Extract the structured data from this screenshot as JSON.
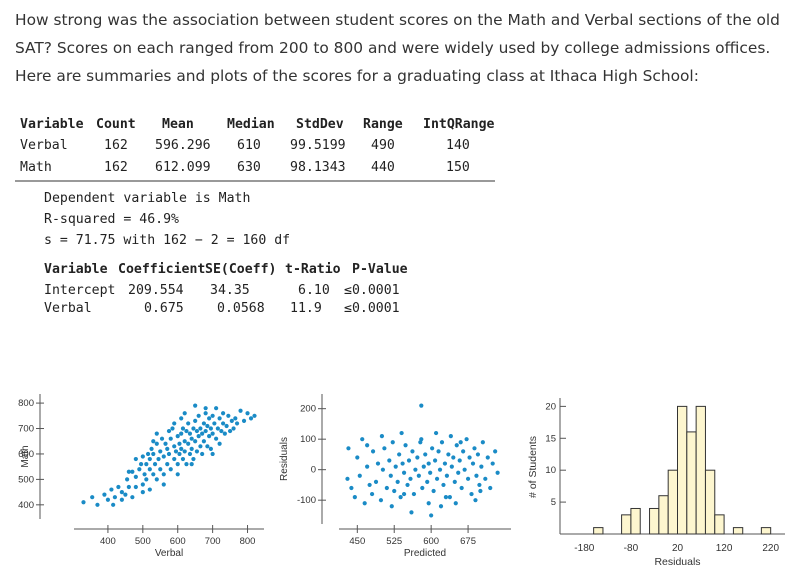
{
  "intro": {
    "line1": "How strong was the association between student scores on the Math and Verbal sections of the old",
    "line2": "SAT? Scores on each ranged from 200 to 800 and were widely used by college admissions offices.",
    "line3": "Here are summaries and plots of the scores for a graduating class at Ithaca High School:"
  },
  "summary": {
    "headers": [
      "Variable",
      "Count",
      "Mean",
      "Median",
      "StdDev",
      "Range",
      "IntQRange"
    ],
    "rows": [
      [
        "Verbal",
        "162",
        "596.296",
        "610",
        "99.5199",
        "490",
        "140"
      ],
      [
        "Math",
        "162",
        "612.099",
        "630",
        "98.1343",
        "440",
        "150"
      ]
    ]
  },
  "regression": {
    "dependent": "Dependent variable is Math",
    "rsq": "R-squared = 46.9%",
    "s": "s = 71.75 with 162 − 2 = 160 df"
  },
  "coef": {
    "headers": [
      "Variable",
      "Coefficient",
      "SE(Coeff)",
      "t-Ratio",
      "P-Value"
    ],
    "rows": [
      [
        "Intercept",
        "209.554",
        "34.35",
        "6.10",
        "≤0.0001"
      ],
      [
        "Verbal",
        "0.675",
        "0.0568",
        "11.9",
        "≤0.0001"
      ]
    ]
  },
  "chart_data": [
    {
      "type": "scatter",
      "xlabel": "Verbal",
      "ylabel": "Math",
      "x_ticks": [
        "400",
        "500",
        "600",
        "700",
        "800"
      ],
      "y_ticks": [
        "400",
        "500",
        "600",
        "700",
        "800"
      ],
      "xlim": [
        320,
        830
      ],
      "ylim": [
        360,
        820
      ],
      "color": "#1a8bc6",
      "points": [
        [
          330,
          410
        ],
        [
          355,
          430
        ],
        [
          370,
          400
        ],
        [
          390,
          440
        ],
        [
          400,
          420
        ],
        [
          410,
          460
        ],
        [
          415,
          400
        ],
        [
          420,
          430
        ],
        [
          430,
          470
        ],
        [
          440,
          420
        ],
        [
          440,
          450
        ],
        [
          450,
          440
        ],
        [
          455,
          500
        ],
        [
          460,
          470
        ],
        [
          470,
          530
        ],
        [
          470,
          430
        ],
        [
          480,
          510
        ],
        [
          480,
          470
        ],
        [
          490,
          540
        ],
        [
          495,
          560
        ],
        [
          500,
          480
        ],
        [
          500,
          590
        ],
        [
          505,
          520
        ],
        [
          510,
          560
        ],
        [
          510,
          500
        ],
        [
          515,
          600
        ],
        [
          520,
          540
        ],
        [
          520,
          580
        ],
        [
          525,
          620
        ],
        [
          530,
          520
        ],
        [
          530,
          600
        ],
        [
          535,
          560
        ],
        [
          540,
          640
        ],
        [
          540,
          500
        ],
        [
          545,
          580
        ],
        [
          550,
          610
        ],
        [
          550,
          540
        ],
        [
          555,
          660
        ],
        [
          560,
          590
        ],
        [
          560,
          520
        ],
        [
          565,
          640
        ],
        [
          570,
          560
        ],
        [
          570,
          620
        ],
        [
          575,
          600
        ],
        [
          580,
          660
        ],
        [
          580,
          540
        ],
        [
          585,
          700
        ],
        [
          590,
          580
        ],
        [
          590,
          630
        ],
        [
          595,
          610
        ],
        [
          600,
          670
        ],
        [
          600,
          560
        ],
        [
          605,
          640
        ],
        [
          605,
          600
        ],
        [
          610,
          680
        ],
        [
          610,
          620
        ],
        [
          615,
          700
        ],
        [
          615,
          580
        ],
        [
          620,
          650
        ],
        [
          620,
          610
        ],
        [
          625,
          690
        ],
        [
          625,
          560
        ],
        [
          630,
          720
        ],
        [
          630,
          640
        ],
        [
          635,
          600
        ],
        [
          635,
          680
        ],
        [
          640,
          660
        ],
        [
          640,
          620
        ],
        [
          645,
          700
        ],
        [
          645,
          580
        ],
        [
          650,
          650
        ],
        [
          650,
          730
        ],
        [
          655,
          610
        ],
        [
          655,
          690
        ],
        [
          660,
          670
        ],
        [
          660,
          750
        ],
        [
          665,
          630
        ],
        [
          665,
          700
        ],
        [
          670,
          680
        ],
        [
          670,
          600
        ],
        [
          675,
          720
        ],
        [
          675,
          650
        ],
        [
          680,
          760
        ],
        [
          680,
          690
        ],
        [
          685,
          630
        ],
        [
          685,
          710
        ],
        [
          690,
          670
        ],
        [
          690,
          740
        ],
        [
          695,
          700
        ],
        [
          695,
          620
        ],
        [
          700,
          750
        ],
        [
          700,
          680
        ],
        [
          705,
          720
        ],
        [
          710,
          660
        ],
        [
          710,
          780
        ],
        [
          715,
          700
        ],
        [
          720,
          740
        ],
        [
          720,
          640
        ],
        [
          725,
          690
        ],
        [
          730,
          760
        ],
        [
          730,
          720
        ],
        [
          735,
          680
        ],
        [
          740,
          710
        ],
        [
          745,
          750
        ],
        [
          750,
          690
        ],
        [
          755,
          730
        ],
        [
          760,
          700
        ],
        [
          765,
          740
        ],
        [
          770,
          720
        ],
        [
          780,
          770
        ],
        [
          790,
          730
        ],
        [
          800,
          760
        ],
        [
          810,
          740
        ],
        [
          820,
          750
        ],
        [
          500,
          450
        ],
        [
          520,
          460
        ],
        [
          560,
          480
        ],
        [
          600,
          520
        ],
        [
          640,
          560
        ],
        [
          700,
          600
        ],
        [
          480,
          580
        ],
        [
          540,
          680
        ],
        [
          590,
          720
        ],
        [
          620,
          760
        ],
        [
          680,
          780
        ],
        [
          460,
          530
        ],
        [
          530,
          650
        ],
        [
          575,
          690
        ],
        [
          610,
          740
        ],
        [
          650,
          790
        ]
      ]
    },
    {
      "type": "scatter",
      "xlabel": "Predicted",
      "ylabel": "Residuals",
      "x_ticks": [
        "450",
        "525",
        "600",
        "675"
      ],
      "y_ticks": [
        "-100",
        "0",
        "100",
        "200"
      ],
      "xlim": [
        425,
        750
      ],
      "ylim": [
        -165,
        235
      ],
      "color": "#1a8bc6",
      "points": [
        [
          430,
          -30
        ],
        [
          432,
          70
        ],
        [
          438,
          -60
        ],
        [
          445,
          -90
        ],
        [
          450,
          40
        ],
        [
          455,
          -20
        ],
        [
          460,
          100
        ],
        [
          465,
          -110
        ],
        [
          470,
          10
        ],
        [
          475,
          -50
        ],
        [
          480,
          -80
        ],
        [
          482,
          60
        ],
        [
          488,
          -40
        ],
        [
          492,
          20
        ],
        [
          498,
          -100
        ],
        [
          502,
          0
        ],
        [
          505,
          70
        ],
        [
          510,
          -60
        ],
        [
          515,
          30
        ],
        [
          518,
          -20
        ],
        [
          522,
          90
        ],
        [
          525,
          -70
        ],
        [
          528,
          10
        ],
        [
          532,
          -40
        ],
        [
          535,
          50
        ],
        [
          538,
          -90
        ],
        [
          542,
          20
        ],
        [
          545,
          -10
        ],
        [
          548,
          80
        ],
        [
          552,
          -50
        ],
        [
          555,
          30
        ],
        [
          558,
          -30
        ],
        [
          562,
          60
        ],
        [
          565,
          -80
        ],
        [
          568,
          0
        ],
        [
          572,
          40
        ],
        [
          575,
          -20
        ],
        [
          578,
          90
        ],
        [
          582,
          -60
        ],
        [
          585,
          10
        ],
        [
          588,
          50
        ],
        [
          592,
          -40
        ],
        [
          595,
          20
        ],
        [
          598,
          -10
        ],
        [
          602,
          70
        ],
        [
          605,
          -70
        ],
        [
          608,
          30
        ],
        [
          612,
          -30
        ],
        [
          615,
          60
        ],
        [
          618,
          0
        ],
        [
          622,
          90
        ],
        [
          625,
          -50
        ],
        [
          628,
          20
        ],
        [
          632,
          -20
        ],
        [
          635,
          50
        ],
        [
          638,
          -90
        ],
        [
          642,
          10
        ],
        [
          645,
          40
        ],
        [
          648,
          -40
        ],
        [
          652,
          80
        ],
        [
          655,
          -10
        ],
        [
          658,
          30
        ],
        [
          662,
          -60
        ],
        [
          665,
          60
        ],
        [
          668,
          0
        ],
        [
          672,
          100
        ],
        [
          675,
          -30
        ],
        [
          678,
          40
        ],
        [
          682,
          -80
        ],
        [
          685,
          20
        ],
        [
          688,
          70
        ],
        [
          692,
          -20
        ],
        [
          695,
          50
        ],
        [
          698,
          -50
        ],
        [
          702,
          10
        ],
        [
          705,
          90
        ],
        [
          710,
          -30
        ],
        [
          715,
          40
        ],
        [
          720,
          -60
        ],
        [
          725,
          20
        ],
        [
          730,
          60
        ],
        [
          735,
          -10
        ],
        [
          560,
          -140
        ],
        [
          600,
          -150
        ],
        [
          580,
          210
        ],
        [
          640,
          110
        ],
        [
          620,
          -120
        ],
        [
          690,
          -100
        ],
        [
          540,
          120
        ],
        [
          500,
          110
        ],
        [
          470,
          80
        ],
        [
          610,
          120
        ],
        [
          650,
          -110
        ],
        [
          520,
          -120
        ],
        [
          700,
          -70
        ],
        [
          580,
          100
        ],
        [
          630,
          -90
        ],
        [
          660,
          90
        ],
        [
          595,
          -110
        ],
        [
          545,
          -80
        ]
      ]
    },
    {
      "type": "bar",
      "title": "",
      "xlabel": "Residuals",
      "ylabel": "# of Students",
      "x_ticks": [
        "-180",
        "-80",
        "20",
        "120",
        "220"
      ],
      "y_ticks": [
        "5",
        "10",
        "15",
        "20"
      ],
      "bin_width": 20,
      "bin_starts": [
        -160,
        -140,
        -120,
        -100,
        -80,
        -60,
        -40,
        -20,
        0,
        20,
        40,
        60,
        80,
        100,
        120,
        140,
        160,
        180,
        200
      ],
      "values": [
        1,
        0,
        0,
        3,
        4,
        0,
        4,
        6,
        10,
        20,
        16,
        20,
        10,
        3,
        0,
        1,
        0,
        0,
        1
      ],
      "ylim": [
        0,
        21
      ],
      "fill": "#fdf6cf"
    }
  ]
}
